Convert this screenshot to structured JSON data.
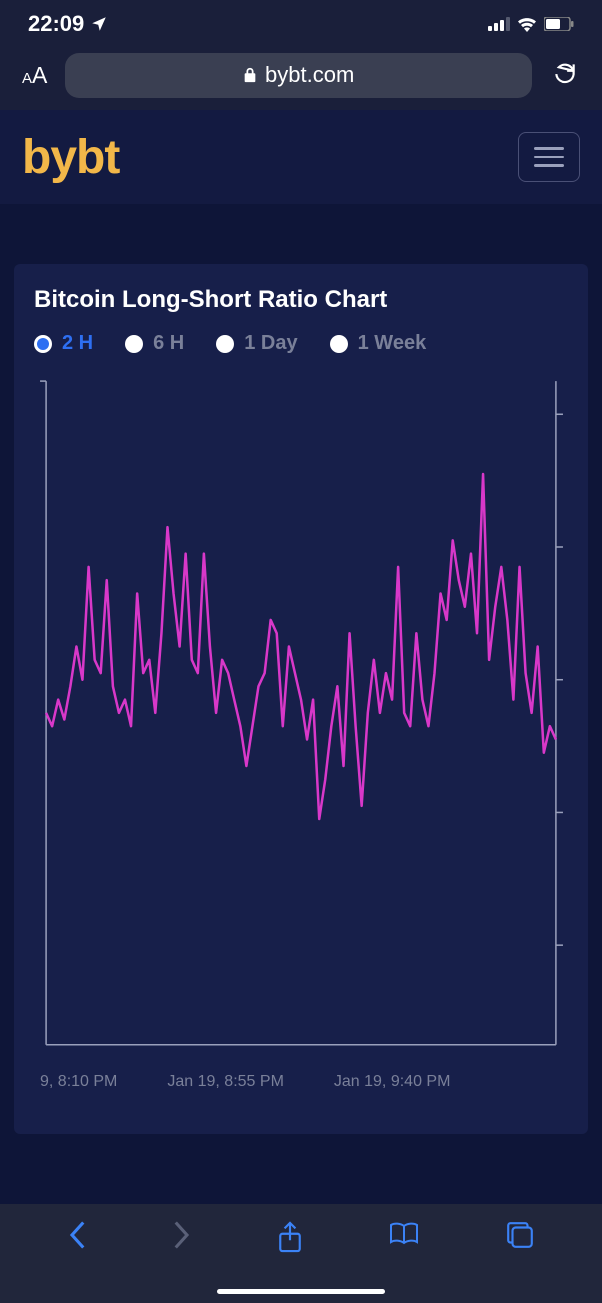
{
  "status_bar": {
    "time": "22:09",
    "location_icon": "location-arrow",
    "signal_bars": 4,
    "wifi": true,
    "battery_pct": 60
  },
  "browser": {
    "url": "bybt.com",
    "lock": true
  },
  "header": {
    "logo_text": "bybt",
    "logo_color": "#f2b749"
  },
  "chart": {
    "title": "Bitcoin Long-Short Ratio Chart",
    "timeframes": [
      {
        "label": "2 H",
        "active": true
      },
      {
        "label": "6 H",
        "active": false
      },
      {
        "label": "1 Day",
        "active": false
      },
      {
        "label": "1 Week",
        "active": false
      }
    ],
    "type": "line",
    "line_color": "#d838c9",
    "line_width": 2.5,
    "axis_color": "#9aa0bc",
    "background_color": "#171f4a",
    "ylim": [
      0,
      100
    ],
    "y_ticks_right": [
      15,
      35,
      55,
      75,
      95
    ],
    "x_labels": [
      "9, 8:10 PM",
      "Jan 19, 8:55 PM",
      "Jan 19, 9:40 PM"
    ],
    "values": [
      50,
      48,
      52,
      49,
      54,
      60,
      55,
      72,
      58,
      56,
      70,
      54,
      50,
      52,
      48,
      68,
      56,
      58,
      50,
      62,
      78,
      68,
      60,
      74,
      58,
      56,
      74,
      60,
      50,
      58,
      56,
      52,
      48,
      42,
      48,
      54,
      56,
      64,
      62,
      48,
      60,
      56,
      52,
      46,
      52,
      34,
      40,
      48,
      54,
      42,
      62,
      48,
      36,
      50,
      58,
      50,
      56,
      52,
      72,
      50,
      48,
      62,
      52,
      48,
      56,
      68,
      64,
      76,
      70,
      66,
      74,
      62,
      86,
      58,
      66,
      72,
      64,
      52,
      72,
      56,
      50,
      60,
      44,
      48,
      46
    ]
  },
  "colors": {
    "status_bg": "#1a1f3a",
    "page_bg": "#0e1538",
    "card_bg": "#171f4a",
    "active_blue": "#2e6ff2",
    "inactive_gray": "#7a8099",
    "nav_blue": "#3b82f6"
  }
}
